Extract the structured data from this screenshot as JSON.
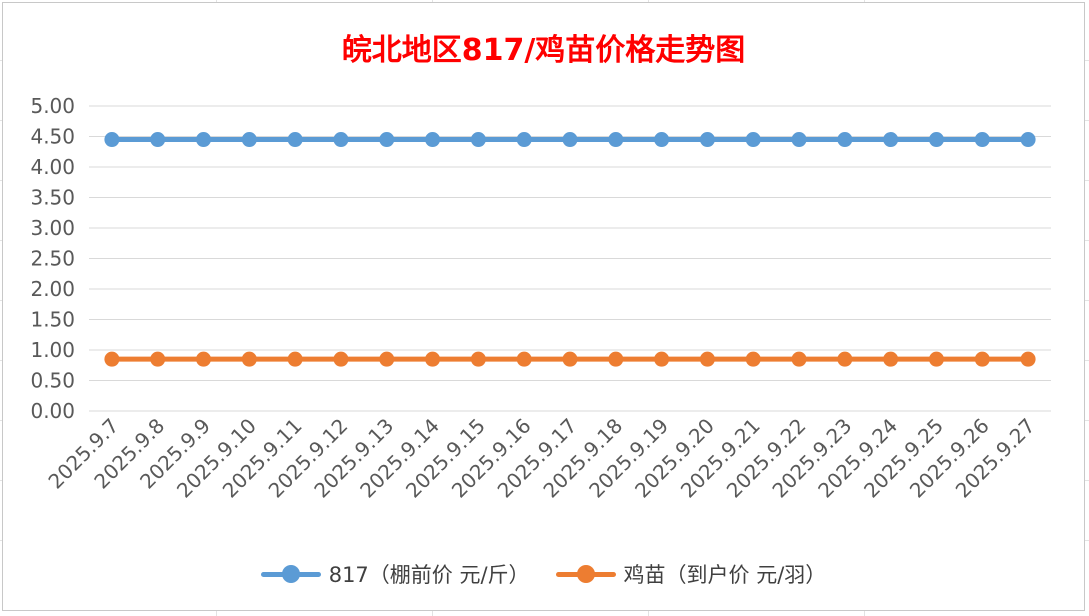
{
  "chart_data": {
    "type": "line",
    "title": "皖北地区817/鸡苗价格走势图",
    "categories": [
      "2025.9.7",
      "2025.9.8",
      "2025.9.9",
      "2025.9.10",
      "2025.9.11",
      "2025.9.12",
      "2025.9.13",
      "2025.9.14",
      "2025.9.15",
      "2025.9.16",
      "2025.9.17",
      "2025.9.18",
      "2025.9.19",
      "2025.9.20",
      "2025.9.21",
      "2025.9.22",
      "2025.9.23",
      "2025.9.24",
      "2025.9.25",
      "2025.9.26",
      "2025.9.27"
    ],
    "series": [
      {
        "name": "817（棚前价 元/斤）",
        "color": "#5b9bd5",
        "values": [
          4.45,
          4.45,
          4.45,
          4.45,
          4.45,
          4.45,
          4.45,
          4.45,
          4.45,
          4.45,
          4.45,
          4.45,
          4.45,
          4.45,
          4.45,
          4.45,
          4.45,
          4.45,
          4.45,
          4.45,
          4.45
        ]
      },
      {
        "name": "鸡苗（到户价 元/羽）",
        "color": "#ed7d31",
        "values": [
          0.85,
          0.85,
          0.85,
          0.85,
          0.85,
          0.85,
          0.85,
          0.85,
          0.85,
          0.85,
          0.85,
          0.85,
          0.85,
          0.85,
          0.85,
          0.85,
          0.85,
          0.85,
          0.85,
          0.85,
          0.85
        ]
      }
    ],
    "ylim": [
      0,
      5
    ],
    "yticks": [
      "0.00",
      "0.50",
      "1.00",
      "1.50",
      "2.00",
      "2.50",
      "3.00",
      "3.50",
      "4.00",
      "4.50",
      "5.00"
    ],
    "grid": true,
    "legend": "bottom",
    "xlabel": "",
    "ylabel": ""
  }
}
